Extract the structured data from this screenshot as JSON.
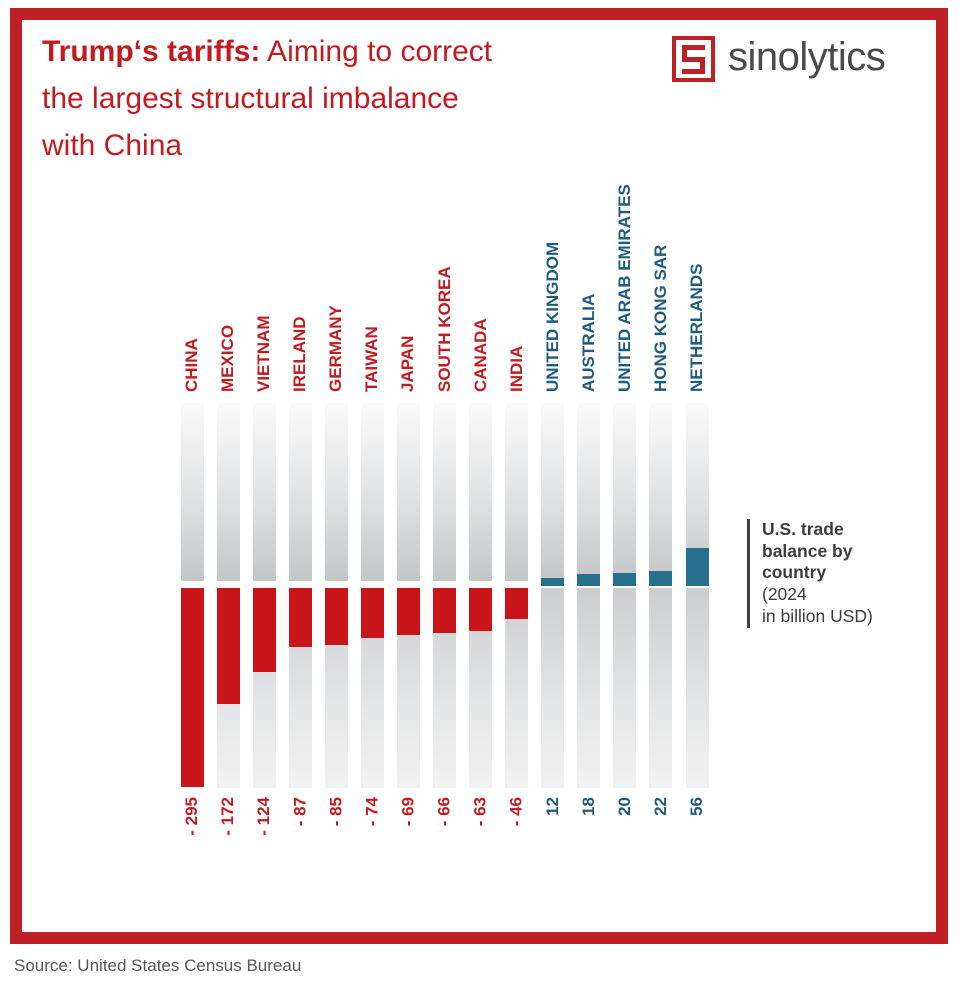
{
  "title": {
    "bold": "Trump‘s tariffs:",
    "line1_rest": " Aiming to correct",
    "line2": "the largest structural imbalance",
    "line3": "with China"
  },
  "logo": {
    "brand": "sinolytics"
  },
  "annotation": {
    "line1": "U.S. trade",
    "line2": "balance by",
    "line3": "country",
    "line4": "(2024",
    "line5": "in billion USD)"
  },
  "source": "Source: United States Census Bureau",
  "chart_data": {
    "type": "bar",
    "title": "U.S. trade balance by country (2024 in billion USD)",
    "categories": [
      "CHINA",
      "MEXICO",
      "VIETNAM",
      "IRELAND",
      "GERMANY",
      "TAIWAN",
      "JAPAN",
      "SOUTH KOREA",
      "CANADA",
      "INDIA",
      "UNITED KINGDOM",
      "AUSTRALIA",
      "UNITED ARAB EMIRATES",
      "HONG KONG SAR",
      "NETHERLANDS"
    ],
    "values": [
      -295,
      -172,
      -124,
      -87,
      -85,
      -74,
      -69,
      -66,
      -63,
      -46,
      12,
      18,
      20,
      22,
      56
    ],
    "value_labels": [
      "- 295",
      "- 172",
      "- 124",
      "- 87",
      "- 85",
      "- 74",
      "- 69",
      "- 66",
      "- 63",
      "- 46",
      "12",
      "18",
      "20",
      "22",
      "56"
    ],
    "ylabel": "",
    "xlabel": "",
    "legend_position": "right",
    "grid": false,
    "colors": {
      "negative_bar": "#c9141a",
      "positive_bar": "#26708e",
      "negative_label": "#c41a1f",
      "positive_label": "#1e5b7c",
      "frame_red": "#bf2026"
    }
  }
}
